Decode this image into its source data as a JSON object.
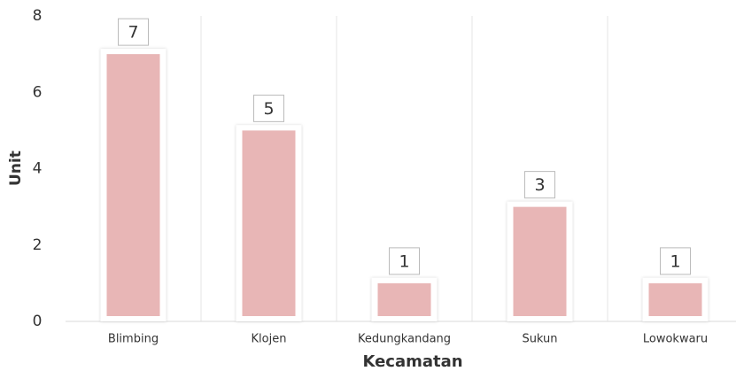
{
  "chart_data": {
    "type": "bar",
    "categories": [
      "Blimbing",
      "Klojen",
      "Kedungkandang",
      "Sukun",
      "Lowokwaru"
    ],
    "values": [
      7,
      5,
      1,
      3,
      1
    ],
    "color": "#e8b6b6",
    "ylim": [
      0,
      8
    ],
    "yticks": [
      0,
      2,
      4,
      6,
      8
    ],
    "xlabel": "Kecamatan",
    "ylabel": "Unit",
    "grid": true
  }
}
